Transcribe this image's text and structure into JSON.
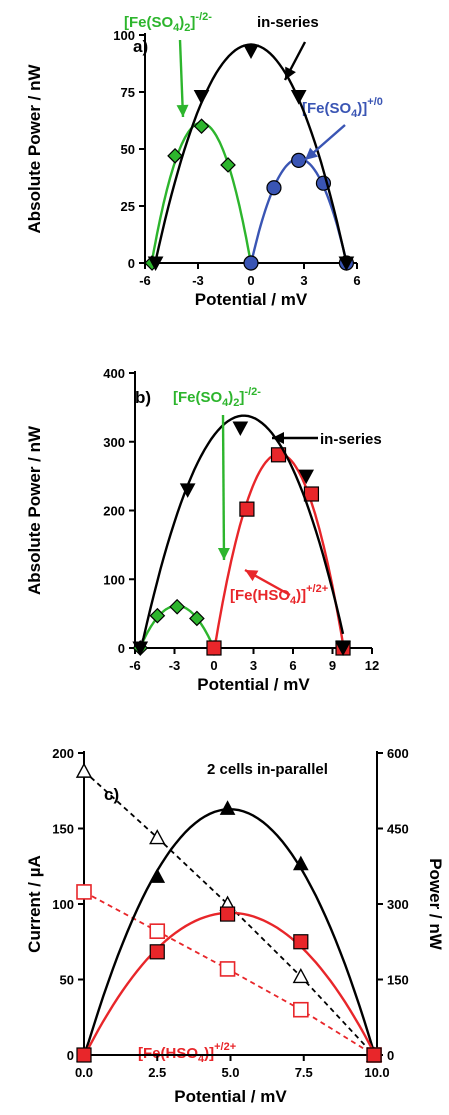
{
  "colors": {
    "green": "#2db52d",
    "blue": "#3a55b4",
    "red": "#e8262a",
    "black": "#000000"
  },
  "chart_data": [
    {
      "type": "line",
      "panel_label": "a)",
      "xlabel": "Potential / mV",
      "ylabel": "Absolute Power / nW",
      "xlim": [
        -6,
        6
      ],
      "ylim": [
        0,
        100
      ],
      "xticks": [
        -6,
        -3,
        0,
        3,
        6
      ],
      "yticks": [
        0,
        25,
        50,
        75,
        100
      ],
      "series": [
        {
          "name": "[Fe(SO4)2]-/2-",
          "color": "#2db52d",
          "marker": "diamond",
          "x": [
            -5.6,
            -4.3,
            -2.8,
            -1.3,
            0
          ],
          "y": [
            0,
            47,
            60,
            43,
            0
          ]
        },
        {
          "name": "[Fe(SO4)]+/0",
          "color": "#3a55b4",
          "marker": "circle",
          "x": [
            0,
            1.3,
            2.7,
            4.1,
            5.4
          ],
          "y": [
            0,
            33,
            45,
            35,
            0
          ]
        },
        {
          "name": "in-series",
          "color": "#000000",
          "marker": "triangle-down",
          "x": [
            -5.4,
            -2.8,
            0,
            2.7,
            5.4
          ],
          "y": [
            0,
            73,
            93,
            73,
            0
          ]
        }
      ],
      "annotations": [
        {
          "text": "[Fe(SO4)2]-/2-",
          "color": "#2db52d"
        },
        {
          "text": "in-series",
          "color": "#000000"
        },
        {
          "text": "[Fe(SO4)]+/0",
          "color": "#3a55b4"
        }
      ]
    },
    {
      "type": "line",
      "panel_label": "b)",
      "xlabel": "Potential / mV",
      "ylabel": "Absolute Power / nW",
      "xlim": [
        -6,
        12
      ],
      "ylim": [
        0,
        400
      ],
      "xticks": [
        -6,
        -3,
        0,
        3,
        6,
        9,
        12
      ],
      "yticks": [
        0,
        100,
        200,
        300,
        400
      ],
      "series": [
        {
          "name": "[Fe(SO4)2]-/2-",
          "color": "#2db52d",
          "marker": "diamond",
          "x": [
            -5.6,
            -4.3,
            -2.8,
            -1.3,
            0
          ],
          "y": [
            0,
            47,
            60,
            43,
            0
          ]
        },
        {
          "name": "[Fe(HSO4)]+/2+",
          "color": "#e8262a",
          "marker": "square",
          "x": [
            0,
            2.5,
            4.9,
            7.4,
            9.8
          ],
          "y": [
            0,
            202,
            281,
            224,
            0
          ]
        },
        {
          "name": "in-series",
          "color": "#000000",
          "marker": "triangle-down",
          "x": [
            -5.6,
            -2.0,
            2.0,
            7.0,
            9.8
          ],
          "y": [
            0,
            230,
            320,
            250,
            0
          ]
        }
      ],
      "annotations": [
        {
          "text": "[Fe(SO4)2]-/2-",
          "color": "#2db52d"
        },
        {
          "text": "in-series",
          "color": "#000000"
        },
        {
          "text": "[Fe(HSO4)]+/2+",
          "color": "#e8262a"
        }
      ]
    },
    {
      "type": "line",
      "panel_label": "c)",
      "title": "2 cells in-parallel",
      "xlabel": "Potential / mV",
      "ylabel": "Current / µA",
      "y2label": "Power / nW",
      "xlim": [
        0,
        10
      ],
      "ylim": [
        0,
        200
      ],
      "y2lim": [
        0,
        600
      ],
      "xticks": [
        0.0,
        2.5,
        5.0,
        7.5,
        10.0
      ],
      "yticks": [
        0,
        50,
        100,
        150,
        200
      ],
      "y2ticks": [
        0,
        150,
        300,
        450,
        600
      ],
      "series": [
        {
          "name": "current (black)",
          "color": "#000000",
          "marker": "triangle-up-open",
          "dashed": true,
          "axis": "left",
          "x": [
            0,
            2.5,
            4.9,
            7.4,
            9.9
          ],
          "y": [
            188,
            144,
            100,
            52,
            0
          ]
        },
        {
          "name": "current (red)",
          "color": "#e8262a",
          "marker": "square-open",
          "dashed": true,
          "axis": "left",
          "x": [
            0,
            2.5,
            4.9,
            7.4,
            9.9
          ],
          "y": [
            108,
            82,
            57,
            30,
            0
          ]
        },
        {
          "name": "power (black)",
          "color": "#000000",
          "marker": "triangle-up",
          "axis": "right",
          "x": [
            0,
            2.5,
            4.9,
            7.4,
            9.9
          ],
          "y": [
            0,
            355,
            490,
            380,
            0
          ]
        },
        {
          "name": "[Fe(HSO4)]+/2+",
          "color": "#e8262a",
          "marker": "square",
          "axis": "right",
          "x": [
            0,
            2.5,
            4.9,
            7.4,
            9.9
          ],
          "y": [
            0,
            205,
            280,
            225,
            0
          ]
        }
      ],
      "annotations": [
        {
          "text": "[Fe(HSO4)]+/2+",
          "color": "#e8262a"
        }
      ]
    }
  ]
}
